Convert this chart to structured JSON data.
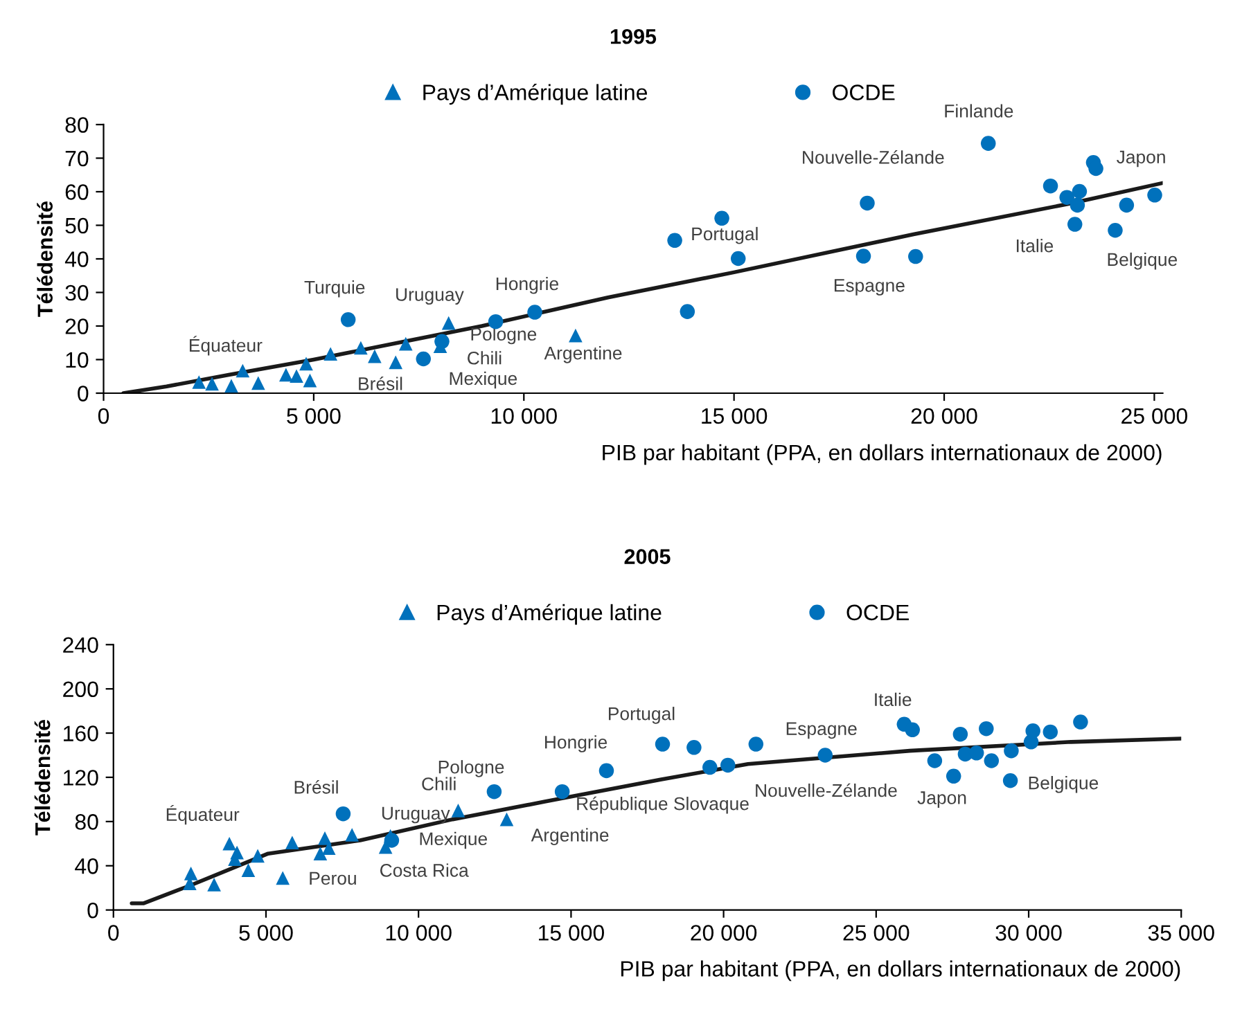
{
  "chart_data": [
    {
      "type": "scatter",
      "title": "1995",
      "xlabel": "PIB par habitant (PPA, en dollars internationaux de 2000)",
      "ylabel": "Télédensité",
      "xlim": [
        0,
        25200
      ],
      "ylim": [
        0,
        80
      ],
      "xticks": [
        0,
        {
          "value": 5000,
          "label": "5 000"
        },
        {
          "value": 10000,
          "label": "10 000"
        },
        {
          "value": 15000,
          "label": "15 000"
        },
        {
          "value": 20000,
          "label": "20 000"
        },
        {
          "value": 25000,
          "label": "25 000"
        }
      ],
      "yticks": [
        0,
        10,
        20,
        30,
        40,
        50,
        60,
        70,
        80
      ],
      "grid": false,
      "legend": "top",
      "series": [
        {
          "name": "Pays d’Amérique latine",
          "marker": "triangle",
          "color": "#0071bc",
          "x": [
            2270,
            2580,
            3040,
            3310,
            3680,
            4340,
            4590,
            4820,
            4910,
            5400,
            6120,
            6450,
            6950,
            7190,
            8010,
            8210,
            11230
          ],
          "values": [
            3.3,
            2.8,
            2.2,
            6.7,
            3.0,
            5.5,
            5.1,
            8.8,
            3.8,
            11.7,
            13.5,
            11.0,
            9.2,
            14.7,
            14.0,
            20.9,
            17.2
          ]
        },
        {
          "name": "OCDE",
          "marker": "circle",
          "color": "#0071bc",
          "x": [
            5820,
            7610,
            8050,
            9330,
            10260,
            13590,
            13890,
            14710,
            15100,
            18080,
            18170,
            19320,
            21050,
            22530,
            22920,
            23110,
            23170,
            23220,
            23550,
            23610,
            24070,
            24340,
            25010
          ],
          "values": [
            21.9,
            10.2,
            15.4,
            21.3,
            24.1,
            45.5,
            24.3,
            52.1,
            40.1,
            40.8,
            56.6,
            40.7,
            74.4,
            61.7,
            58.3,
            50.3,
            56.0,
            60.1,
            68.7,
            66.9,
            48.5,
            56.0,
            59.0
          ]
        },
        {
          "type": "line",
          "color": "#1a1a1a",
          "x": [
            470,
            1500,
            3000,
            5000,
            7000,
            9000,
            12000,
            15000,
            19270,
            23000,
            25200
          ],
          "values": [
            0,
            2,
            5.5,
            10,
            15,
            20,
            28.5,
            36,
            47.3,
            56.5,
            62.6
          ]
        }
      ],
      "annotations": [
        {
          "text": "Équateur",
          "x": 3310,
          "y": 6.7
        },
        {
          "text": "Turquie",
          "x": 5820,
          "y": 21.9
        },
        {
          "text": "Uruguay",
          "x": 8210,
          "y": 20.9
        },
        {
          "text": "Hongrie",
          "x": 10260,
          "y": 24.1
        },
        {
          "text": "Pologne",
          "x": 8050,
          "y": 15.4
        },
        {
          "text": "Chili",
          "x": 8010,
          "y": 14.0
        },
        {
          "text": "Mexique",
          "x": 7610,
          "y": 10.2
        },
        {
          "text": "Brésil",
          "x": 6950,
          "y": 9.2
        },
        {
          "text": "Argentine",
          "x": 11230,
          "y": 17.2
        },
        {
          "text": "Portugal",
          "x": 15100,
          "y": 40.1
        },
        {
          "text": "Nouvelle-Zélande",
          "x": 18170,
          "y": 56.6
        },
        {
          "text": "Espagne",
          "x": 18080,
          "y": 40.8
        },
        {
          "text": "Finlande",
          "x": 21050,
          "y": 74.4
        },
        {
          "text": "Italie",
          "x": 23110,
          "y": 50.3
        },
        {
          "text": "Belgique",
          "x": 24070,
          "y": 48.5
        },
        {
          "text": "Japon",
          "x": 25010,
          "y": 59.0
        }
      ]
    },
    {
      "type": "scatter",
      "title": "2005",
      "xlabel": "PIB par habitant (PPA, en dollars internationaux de 2000)",
      "ylabel": "Télédensité",
      "xlim": [
        0,
        35000
      ],
      "ylim": [
        0,
        240
      ],
      "xticks": [
        0,
        {
          "value": 5000,
          "label": "5 000"
        },
        {
          "value": 10000,
          "label": "10 000"
        },
        {
          "value": 15000,
          "label": "15 000"
        },
        {
          "value": 20000,
          "label": "20 000"
        },
        {
          "value": 25000,
          "label": "25 000"
        },
        {
          "value": 30000,
          "label": "30 000"
        },
        {
          "value": 35000,
          "label": "35 000"
        }
      ],
      "yticks": [
        0,
        40,
        80,
        120,
        160,
        200,
        240
      ],
      "grid": false,
      "legend": "top",
      "series": [
        {
          "name": "Pays d’Amérique latine",
          "marker": "triangle",
          "color": "#0071bc",
          "x": [
            2540,
            2500,
            3300,
            3800,
            4050,
            3980,
            4420,
            4730,
            5550,
            5860,
            6930,
            6780,
            7060,
            7820,
            9080,
            8920,
            11300,
            12890
          ],
          "values": [
            33,
            24,
            23,
            60,
            52,
            46,
            36,
            49,
            29,
            61,
            65,
            51,
            56,
            68,
            67,
            57,
            90,
            82
          ]
        },
        {
          "name": "OCDE",
          "marker": "circle",
          "color": "#0071bc",
          "x": [
            7530,
            9120,
            12480,
            14710,
            16160,
            18000,
            19030,
            19550,
            20140,
            21060,
            23330,
            25920,
            26190,
            26920,
            27540,
            27760,
            27920,
            28290,
            28610,
            28780,
            29430,
            29400,
            30080,
            30140,
            30710,
            31700
          ],
          "values": [
            87,
            63,
            107,
            107,
            126,
            150,
            147,
            129,
            131,
            150,
            140,
            168,
            163,
            135,
            121,
            159,
            141,
            142,
            164,
            135,
            144,
            117,
            152,
            162,
            161,
            170
          ]
        },
        {
          "type": "line",
          "color": "#1a1a1a",
          "x": [
            600,
            980,
            2500,
            5070,
            8090,
            11120,
            14140,
            17930,
            20800,
            26100,
            31390,
            35000
          ],
          "values": [
            6,
            6,
            22,
            51,
            63,
            82,
            98,
            118,
            132,
            144,
            152,
            155
          ]
        }
      ],
      "annotations": [
        {
          "text": "Équateur",
          "x": 3800,
          "y": 60
        },
        {
          "text": "Brésil",
          "x": 7530,
          "y": 87
        },
        {
          "text": "Uruguay",
          "x": 9080,
          "y": 67
        },
        {
          "text": "Mexique",
          "x": 9120,
          "y": 63
        },
        {
          "text": "Costa Rica",
          "x": 8920,
          "y": 57
        },
        {
          "text": "Perou",
          "x": 5550,
          "y": 29
        },
        {
          "text": "Chili",
          "x": 11300,
          "y": 90
        },
        {
          "text": "Pologne",
          "x": 12480,
          "y": 107
        },
        {
          "text": "Argentine",
          "x": 12890,
          "y": 82
        },
        {
          "text": "Hongrie",
          "x": 16160,
          "y": 126
        },
        {
          "text": "République Slovaque",
          "x": 14710,
          "y": 107
        },
        {
          "text": "Portugal",
          "x": 18000,
          "y": 150
        },
        {
          "text": "Nouvelle-Zélande",
          "x": 20140,
          "y": 131
        },
        {
          "text": "Espagne",
          "x": 23330,
          "y": 140
        },
        {
          "text": "Italie",
          "x": 25920,
          "y": 168
        },
        {
          "text": "Japon",
          "x": 27540,
          "y": 121
        },
        {
          "text": "Belgique",
          "x": 29400,
          "y": 117
        }
      ]
    }
  ]
}
